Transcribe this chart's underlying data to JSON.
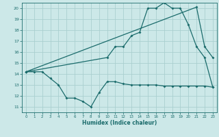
{
  "bg_color": "#cce8e8",
  "grid_color": "#aacfcf",
  "line_color": "#1a6b6b",
  "xlabel": "Humidex (Indice chaleur)",
  "xlim": [
    -0.5,
    23.5
  ],
  "ylim": [
    10.5,
    20.5
  ],
  "yticks": [
    11,
    12,
    13,
    14,
    15,
    16,
    17,
    18,
    19,
    20
  ],
  "xticks": [
    0,
    1,
    2,
    3,
    4,
    5,
    6,
    7,
    8,
    9,
    10,
    11,
    12,
    13,
    14,
    15,
    16,
    17,
    18,
    19,
    20,
    21,
    22,
    23
  ],
  "line1_x": [
    0,
    1,
    2,
    3,
    4,
    5,
    6,
    7,
    8,
    9,
    10,
    11,
    12,
    13,
    14,
    15,
    16,
    17,
    18,
    19,
    20,
    21,
    22,
    23
  ],
  "line1_y": [
    14.2,
    14.2,
    14.2,
    13.6,
    13.0,
    11.8,
    11.8,
    11.5,
    11.0,
    12.3,
    13.3,
    13.3,
    13.1,
    13.0,
    13.0,
    13.0,
    13.0,
    12.9,
    12.9,
    12.9,
    12.9,
    12.9,
    12.9,
    12.8
  ],
  "line2_x": [
    0,
    21,
    22,
    23
  ],
  "line2_y": [
    14.2,
    20.1,
    16.5,
    15.5
  ],
  "line3_x": [
    0,
    10,
    11,
    12,
    13,
    14,
    15,
    16,
    17,
    18,
    19,
    20,
    21,
    22,
    23
  ],
  "line3_y": [
    14.2,
    15.5,
    16.5,
    16.5,
    17.5,
    17.8,
    20.0,
    20.0,
    20.5,
    20.0,
    20.0,
    18.5,
    16.5,
    15.5,
    12.8
  ]
}
